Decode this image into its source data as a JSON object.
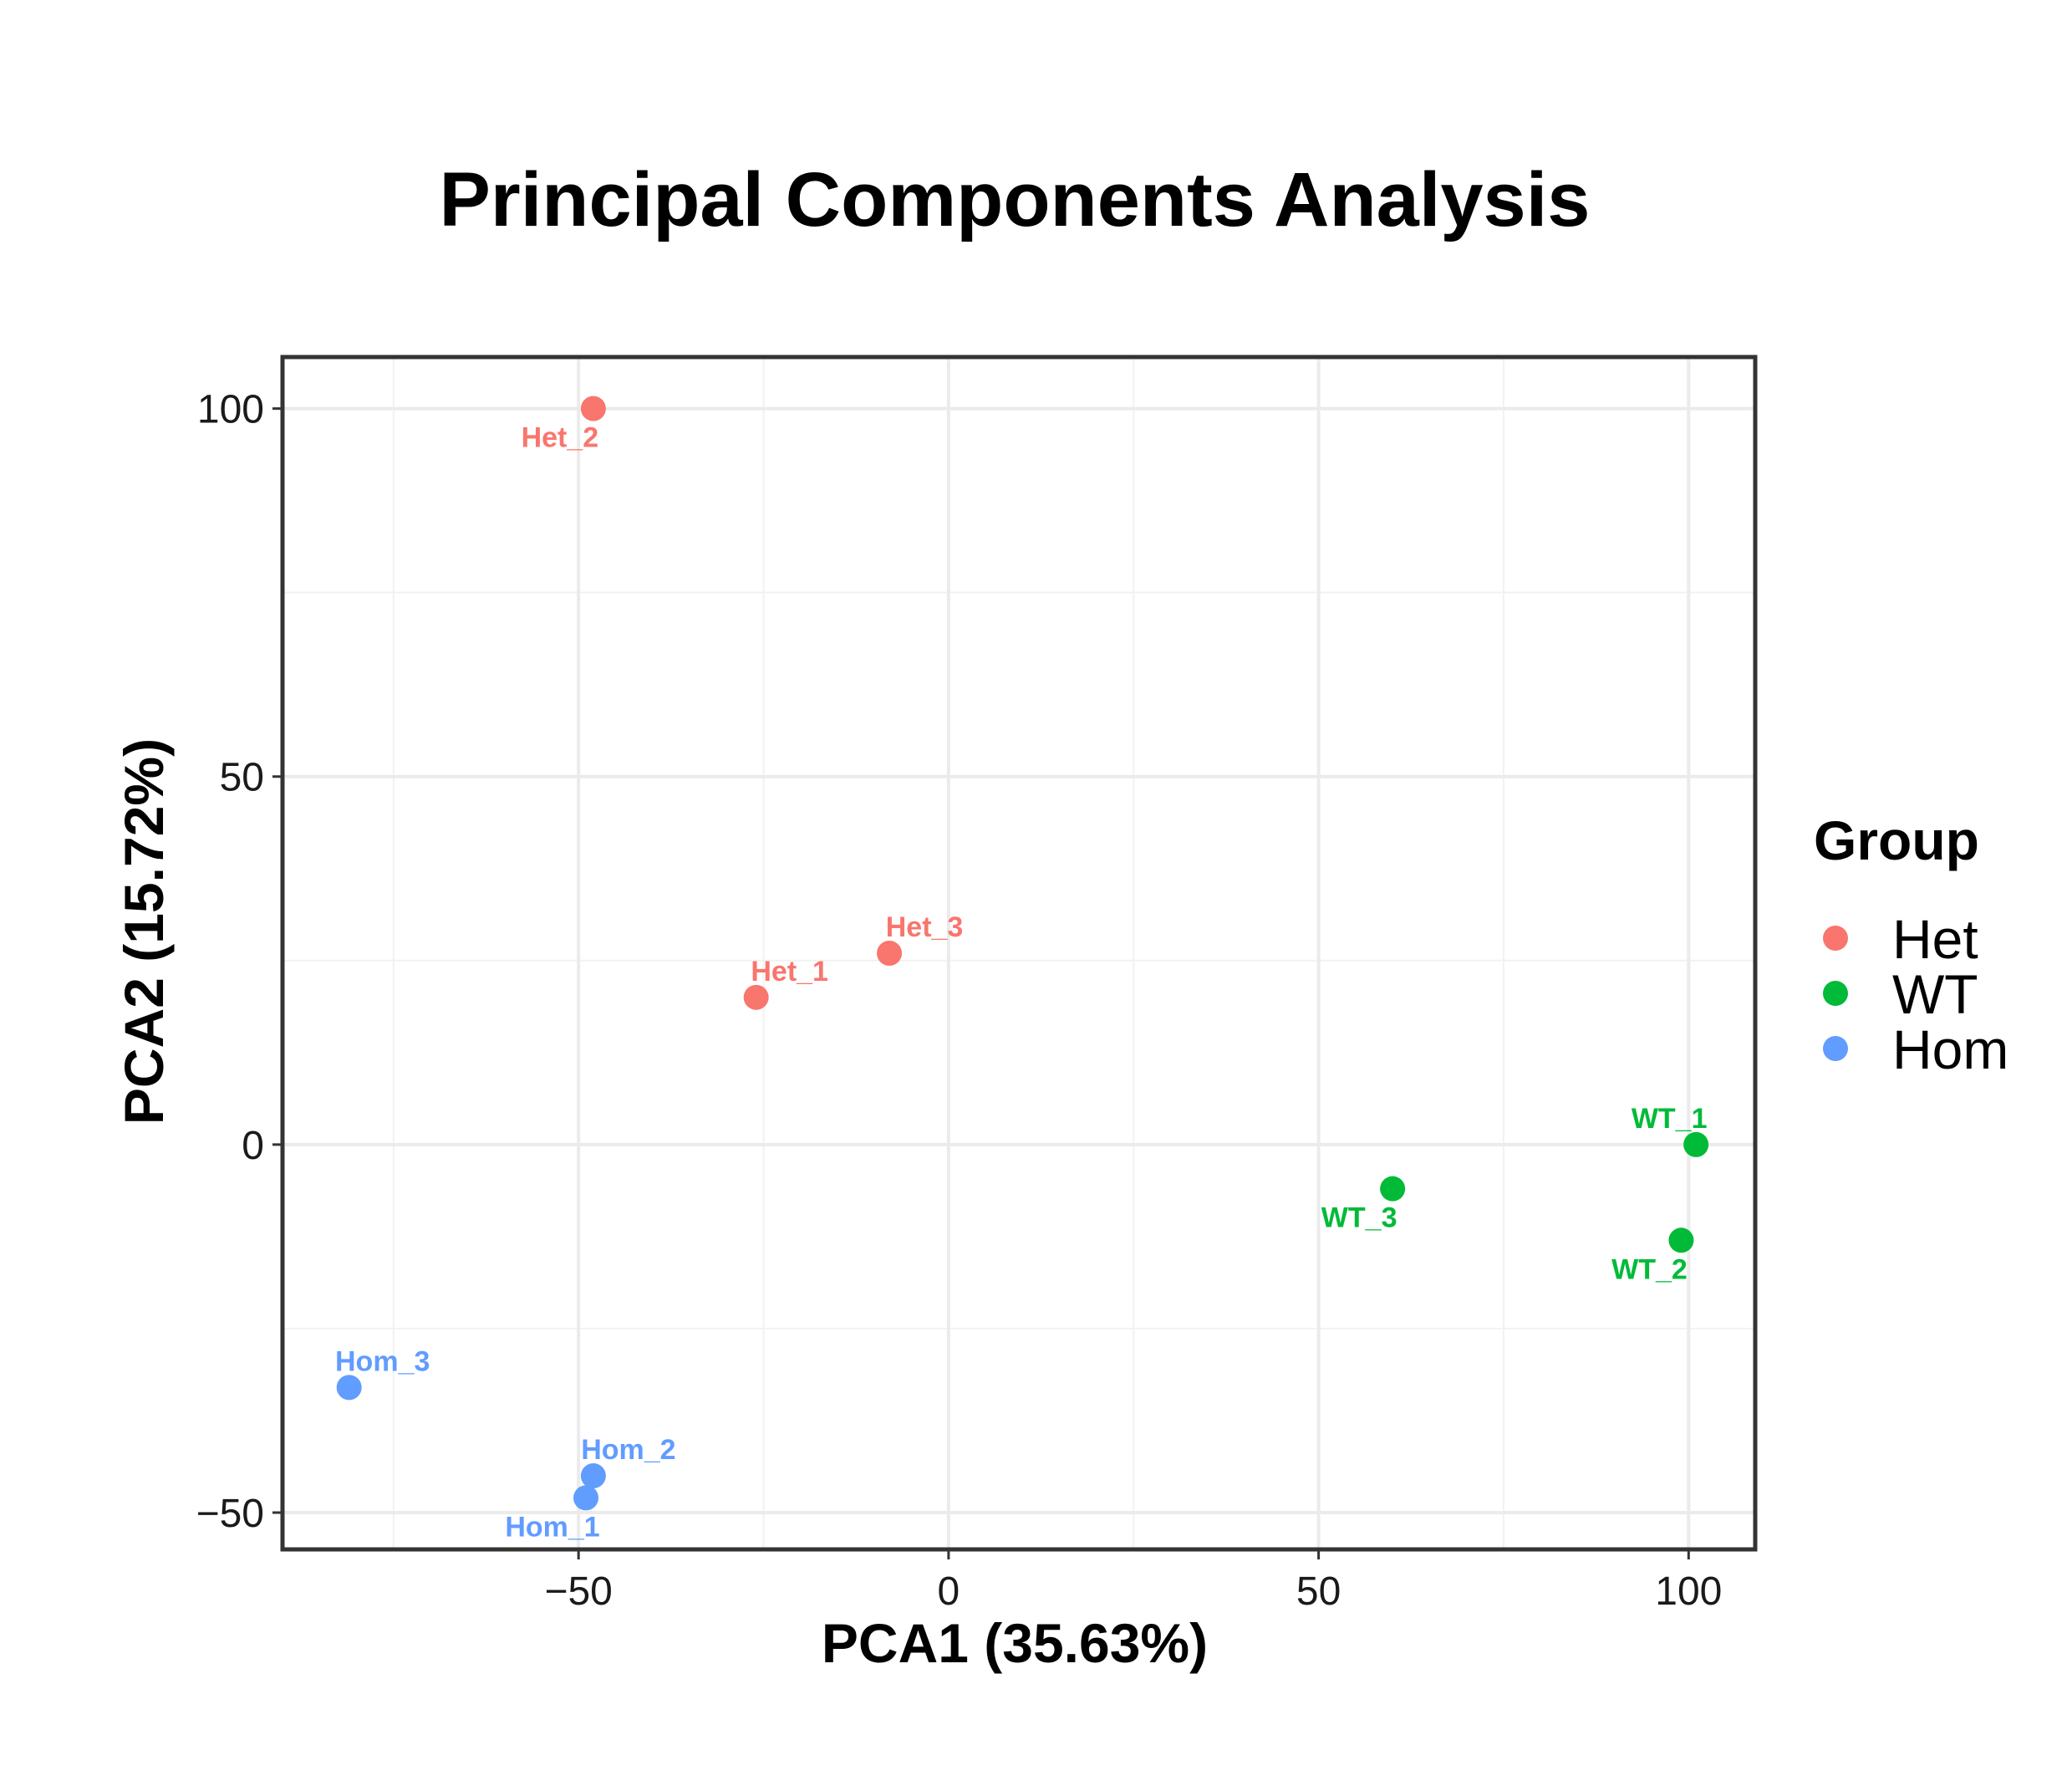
{
  "chart_data": {
    "type": "scatter",
    "title": "Principal Components Analysis",
    "xlabel": "PCA1 (35.63%)",
    "ylabel": "PCA2 (15.72%)",
    "xlim": [
      -90,
      109
    ],
    "ylim": [
      -55,
      107
    ],
    "x_ticks": [
      -50,
      0,
      50,
      100
    ],
    "x_tick_labels": [
      "−50",
      "0",
      "50",
      "100"
    ],
    "y_ticks": [
      -50,
      0,
      50,
      100
    ],
    "y_tick_labels": [
      "−50",
      "0",
      "50",
      "100"
    ],
    "grid": true,
    "legend": {
      "title": "Group",
      "placement": "right",
      "entries": [
        "Het",
        "WT",
        "Hom"
      ]
    },
    "colors": {
      "Het": "#F8766D",
      "WT": "#00BA38",
      "Hom": "#619CFF"
    },
    "series": [
      {
        "name": "Het",
        "points": [
          {
            "label": "Het_2",
            "x": -48,
            "y": 100
          },
          {
            "label": "Het_1",
            "x": -26,
            "y": 20
          },
          {
            "label": "Het_3",
            "x": -8,
            "y": 26
          }
        ]
      },
      {
        "name": "WT",
        "points": [
          {
            "label": "WT_1",
            "x": 101,
            "y": 0
          },
          {
            "label": "WT_3",
            "x": 60,
            "y": -6
          },
          {
            "label": "WT_2",
            "x": 99,
            "y": -13
          }
        ]
      },
      {
        "name": "Hom",
        "points": [
          {
            "label": "Hom_3",
            "x": -81,
            "y": -33
          },
          {
            "label": "Hom_2",
            "x": -48,
            "y": -45
          },
          {
            "label": "Hom_1",
            "x": -49,
            "y": -48
          }
        ]
      }
    ]
  }
}
